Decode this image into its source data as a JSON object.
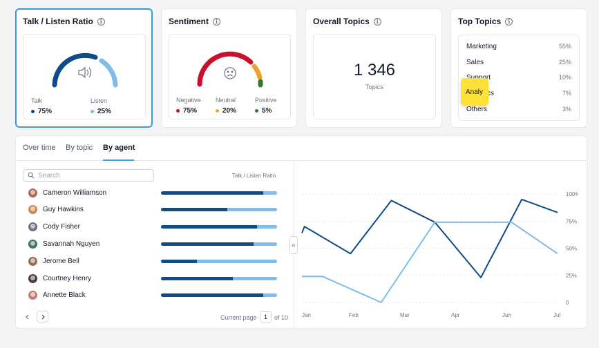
{
  "cards": {
    "talk_listen": {
      "title": "Talk / Listen Ratio",
      "talk_label": "Talk",
      "talk_value": "75%",
      "listen_label": "Listen",
      "listen_value": "25%",
      "talk_color": "#0d4b8a",
      "listen_color": "#7dbde9",
      "icon": "speaker-icon"
    },
    "sentiment": {
      "title": "Sentiment",
      "negative_label": "Negative",
      "negative_value": "75%",
      "neutral_label": "Neutral",
      "neutral_value": "20%",
      "positive_label": "Positive",
      "positive_value": "5%",
      "negative_color": "#c8102e",
      "neutral_color": "#f0a030",
      "positive_color": "#2e7d32",
      "icon": "sad-face-icon"
    },
    "overall": {
      "title": "Overall Topics",
      "value": "1 346",
      "sub": "Topics"
    },
    "top_topics": {
      "title": "Top Topics",
      "items": [
        {
          "name": "Marketing",
          "pct": "55%"
        },
        {
          "name": "Sales",
          "pct": "25%"
        },
        {
          "name": "Support",
          "pct": "10%"
        },
        {
          "name": "Analytics",
          "pct": "7%"
        },
        {
          "name": "Others",
          "pct": "3%"
        }
      ]
    }
  },
  "tabs": [
    "Over time",
    "By topic",
    "By agent"
  ],
  "active_tab": "By agent",
  "search": {
    "placeholder": "Search"
  },
  "column_header": "Talk / Listen Ratio",
  "agents": [
    {
      "name": "Cameron Williamson",
      "talk": 0.88,
      "avatar_color": "#b5685a"
    },
    {
      "name": "Guy Hawkins",
      "talk": 0.57,
      "avatar_color": "#c98a52"
    },
    {
      "name": "Cody Fisher",
      "talk": 0.83,
      "avatar_color": "#6b7280"
    },
    {
      "name": "Savannah Nguyen",
      "talk": 0.8,
      "avatar_color": "#3f6f6a"
    },
    {
      "name": "Jerome Bell",
      "talk": 0.31,
      "avatar_color": "#9a6b55"
    },
    {
      "name": "Courtney Henry",
      "talk": 0.62,
      "avatar_color": "#4b3b3b"
    },
    {
      "name": "Annette Black",
      "talk": 0.88,
      "avatar_color": "#c77b6b"
    }
  ],
  "pager": {
    "current_label": "Current page",
    "current": "1",
    "of_label": "of 10",
    "prev_icon": "chevron-left-icon",
    "next_icon": "chevron-right-icon"
  },
  "chart_data": {
    "type": "line",
    "x": [
      "Jan",
      "Feb",
      "Mar",
      "Apr",
      "Jun",
      "Jul"
    ],
    "x_positions": [
      0,
      1,
      2,
      3,
      4,
      5
    ],
    "yticks": [
      "100%",
      "75%",
      "50%",
      "25%",
      "0"
    ],
    "ylim": [
      0,
      100
    ],
    "grid": true,
    "series": [
      {
        "color": "#0d4b8a",
        "points": [
          [
            0,
            64
          ],
          [
            0.05,
            70
          ],
          [
            0.95,
            45
          ],
          [
            1.75,
            94
          ],
          [
            2.6,
            74
          ],
          [
            3.5,
            23
          ],
          [
            4.3,
            95
          ],
          [
            5,
            83
          ]
        ]
      },
      {
        "color": "#7dbde9",
        "points": [
          [
            0,
            24
          ],
          [
            0.4,
            24
          ],
          [
            1.55,
            0
          ],
          [
            2.6,
            74
          ],
          [
            4.1,
            74
          ],
          [
            5,
            45
          ]
        ]
      }
    ]
  }
}
